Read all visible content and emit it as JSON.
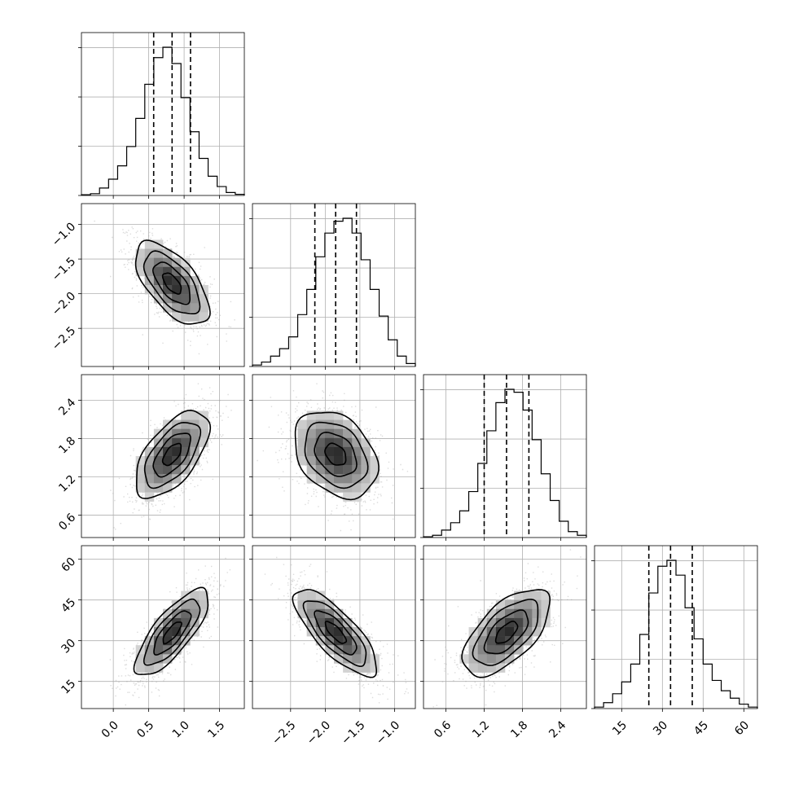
{
  "chart_data": {
    "type": "corner",
    "parameters": [
      {
        "index": 0,
        "median": 0.83,
        "q16": 0.57,
        "q84": 1.09,
        "sigma": 0.26,
        "range": [
          -0.45,
          1.85
        ],
        "hist": [
          0.005,
          0.012,
          0.05,
          0.11,
          0.2,
          0.33,
          0.52,
          0.75,
          0.93,
          1.0,
          0.89,
          0.66,
          0.43,
          0.25,
          0.13,
          0.06,
          0.02,
          0.008
        ],
        "ticks": [
          0.0,
          0.5,
          1.0,
          1.5
        ],
        "tick_labels": [
          "0.0",
          "0.5",
          "1.0",
          "1.5"
        ]
      },
      {
        "index": 1,
        "median": -1.85,
        "q16": -2.15,
        "q84": -1.55,
        "sigma": 0.3,
        "range": [
          -3.05,
          -0.7
        ],
        "hist": [
          0.01,
          0.03,
          0.07,
          0.12,
          0.2,
          0.35,
          0.52,
          0.74,
          0.9,
          0.98,
          1.0,
          0.9,
          0.72,
          0.52,
          0.34,
          0.18,
          0.07,
          0.02
        ],
        "ticks": [
          -2.5,
          -2.0,
          -1.5,
          -1.0
        ],
        "tick_labels": [
          "−2.5",
          "−2.0",
          "−1.5",
          "−1.0"
        ]
      },
      {
        "index": 2,
        "median": 1.55,
        "q16": 1.2,
        "q84": 1.9,
        "sigma": 0.34,
        "range": [
          0.25,
          2.8
        ],
        "hist": [
          0.005,
          0.015,
          0.05,
          0.1,
          0.18,
          0.31,
          0.5,
          0.72,
          0.91,
          1.0,
          0.98,
          0.86,
          0.66,
          0.43,
          0.25,
          0.11,
          0.04,
          0.015
        ],
        "ticks": [
          0.6,
          1.2,
          1.8,
          2.4
        ],
        "tick_labels": [
          "0.6",
          "1.2",
          "1.8",
          "2.4"
        ]
      },
      {
        "index": 3,
        "median": 33,
        "q16": 25,
        "q84": 41,
        "sigma": 8,
        "range": [
          5,
          65
        ],
        "hist": [
          0.01,
          0.04,
          0.1,
          0.18,
          0.3,
          0.5,
          0.78,
          0.96,
          1.0,
          0.9,
          0.68,
          0.47,
          0.3,
          0.19,
          0.12,
          0.07,
          0.03,
          0.01
        ],
        "ticks": [
          15,
          30,
          45,
          60
        ],
        "tick_labels": [
          "15",
          "30",
          "45",
          "60"
        ]
      }
    ],
    "pairs": [
      {
        "row": 1,
        "col": 0,
        "corr": -0.62
      },
      {
        "row": 2,
        "col": 0,
        "corr": 0.6
      },
      {
        "row": 2,
        "col": 1,
        "corr": -0.32
      },
      {
        "row": 3,
        "col": 0,
        "corr": 0.78
      },
      {
        "row": 3,
        "col": 1,
        "corr": -0.78
      },
      {
        "row": 3,
        "col": 2,
        "corr": 0.62
      }
    ],
    "contour_levels_sigma": [
      0.5,
      1.0,
      1.5,
      2.0
    ],
    "quantiles": [
      0.16,
      0.5,
      0.84
    ],
    "grid": true,
    "colors": {
      "points": "#9a9a9a",
      "contour": "#000000",
      "hist": "#000000",
      "grid": "#b0b0b0"
    }
  }
}
